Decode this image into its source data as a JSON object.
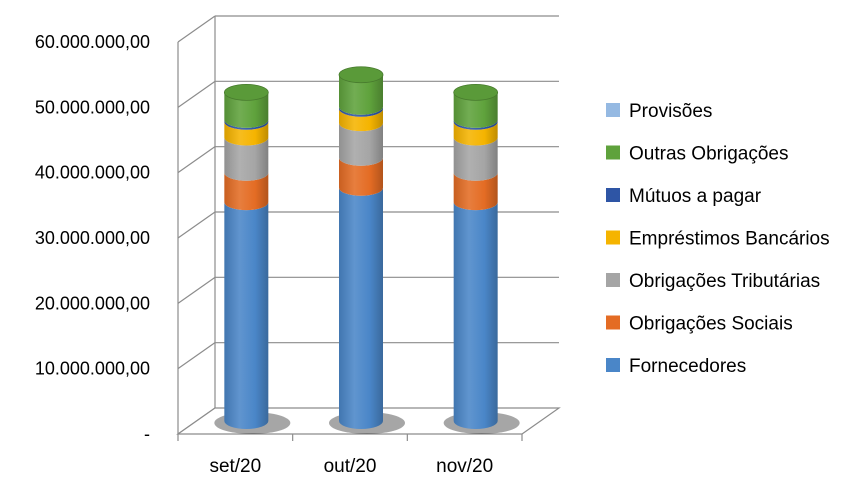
{
  "chart_data": {
    "type": "bar",
    "stacked": true,
    "style": "3d-cylinder",
    "categories": [
      "set/20",
      "out/20",
      "nov/20"
    ],
    "series": [
      {
        "name": "Fornecedores",
        "color": "#4a86c8",
        "values": [
          33500000,
          35700000,
          33500000
        ]
      },
      {
        "name": "Obrigações Sociais",
        "color": "#e46c24",
        "values": [
          4500000,
          4600000,
          4500000
        ]
      },
      {
        "name": "Obrigações Tributárias",
        "color": "#a5a5a5",
        "values": [
          5400000,
          5300000,
          5400000
        ]
      },
      {
        "name": "Empréstimos Bancários",
        "color": "#f5b400",
        "values": [
          2400000,
          2200000,
          2400000
        ]
      },
      {
        "name": "Mútuos a pagar",
        "color": "#2e55a5",
        "values": [
          300000,
          300000,
          300000
        ]
      },
      {
        "name": "Outras Obrigações",
        "color": "#5fa23c",
        "values": [
          4200000,
          4900000,
          4200000
        ]
      },
      {
        "name": "Provisões",
        "color": "#95b9e2",
        "values": [
          0,
          0,
          0
        ]
      }
    ],
    "legend_order": [
      "Provisões",
      "Outras Obrigações",
      "Mútuos a pagar",
      "Empréstimos Bancários",
      "Obrigações Tributárias",
      "Obrigações Sociais",
      "Fornecedores"
    ],
    "y_ticks": [
      {
        "value": 0,
        "label": "-"
      },
      {
        "value": 10000000,
        "label": "10.000.000,00"
      },
      {
        "value": 20000000,
        "label": "20.000.000,00"
      },
      {
        "value": 30000000,
        "label": "30.000.000,00"
      },
      {
        "value": 40000000,
        "label": "40.000.000,00"
      },
      {
        "value": 50000000,
        "label": "50.000.000,00"
      },
      {
        "value": 60000000,
        "label": "60.000.000,00"
      }
    ],
    "ylim": [
      0,
      60000000
    ],
    "grid": true,
    "legend_position": "right",
    "title": "",
    "xlabel": "",
    "ylabel": ""
  }
}
